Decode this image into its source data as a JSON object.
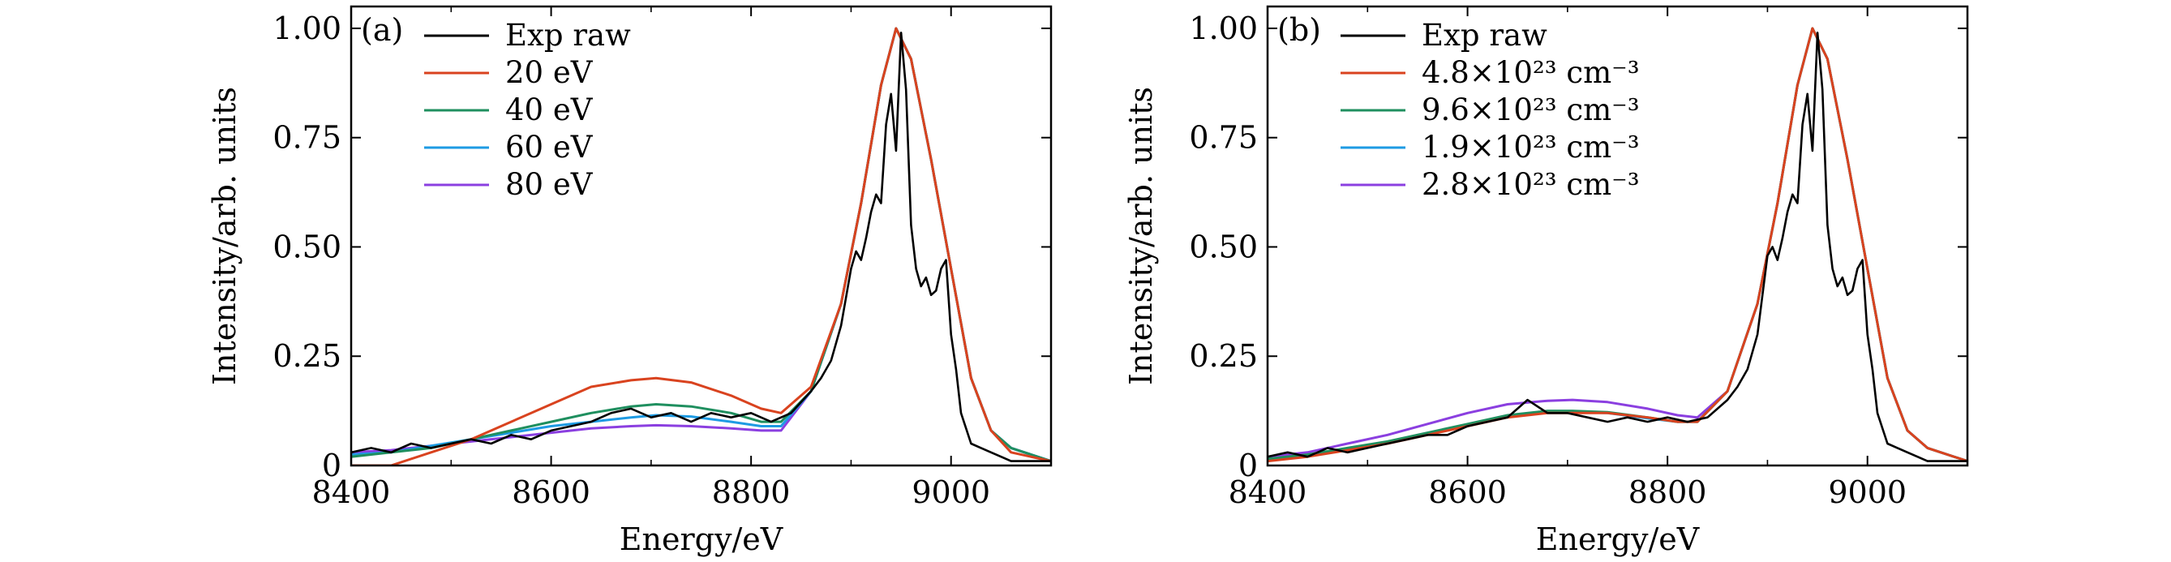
{
  "figure": {
    "title": ""
  },
  "chart_data": [
    {
      "panel": "(a)",
      "type": "line",
      "title": "",
      "xlabel": "Energy/eV",
      "ylabel": "Intensity/arb. units",
      "xlim": [
        8400,
        9100
      ],
      "ylim": [
        0,
        1.05
      ],
      "xticks": [
        8400,
        8600,
        8800,
        9000
      ],
      "xtick_labels": [
        "8400",
        "8600",
        "8800",
        "9000"
      ],
      "yticks": [
        0,
        0.25,
        0.5,
        0.75,
        1.0
      ],
      "ytick_labels": [
        "0",
        "0.25",
        "0.50",
        "0.75",
        "1.00"
      ],
      "grid": false,
      "legend": "top-left",
      "series": [
        {
          "name": "Exp raw",
          "color": "#000000",
          "x": [
            8400,
            8420,
            8440,
            8460,
            8480,
            8500,
            8520,
            8540,
            8560,
            8580,
            8600,
            8620,
            8640,
            8660,
            8680,
            8700,
            8720,
            8740,
            8760,
            8780,
            8800,
            8820,
            8840,
            8860,
            8870,
            8880,
            8890,
            8900,
            8905,
            8910,
            8915,
            8920,
            8925,
            8930,
            8935,
            8940,
            8945,
            8950,
            8955,
            8960,
            8965,
            8970,
            8975,
            8980,
            8985,
            8990,
            8995,
            9000,
            9005,
            9010,
            9020,
            9030,
            9040,
            9050,
            9060,
            9080,
            9100
          ],
          "y": [
            0.03,
            0.04,
            0.03,
            0.05,
            0.04,
            0.05,
            0.06,
            0.05,
            0.07,
            0.06,
            0.08,
            0.09,
            0.1,
            0.12,
            0.13,
            0.11,
            0.12,
            0.1,
            0.12,
            0.11,
            0.12,
            0.1,
            0.12,
            0.17,
            0.2,
            0.24,
            0.32,
            0.45,
            0.49,
            0.47,
            0.52,
            0.58,
            0.62,
            0.6,
            0.78,
            0.85,
            0.72,
            0.99,
            0.86,
            0.55,
            0.45,
            0.41,
            0.43,
            0.39,
            0.4,
            0.45,
            0.47,
            0.3,
            0.22,
            0.12,
            0.05,
            0.04,
            0.03,
            0.02,
            0.01,
            0.01,
            0.01
          ]
        },
        {
          "name": "20 eV",
          "color": "#d9431f",
          "x": [
            8400,
            8440,
            8480,
            8520,
            8560,
            8600,
            8640,
            8680,
            8705,
            8740,
            8780,
            8810,
            8830,
            8860,
            8890,
            8910,
            8930,
            8945,
            8960,
            8980,
            9000,
            9020,
            9040,
            9060,
            9100
          ],
          "y": [
            0.0,
            0.0,
            0.03,
            0.06,
            0.1,
            0.14,
            0.18,
            0.195,
            0.2,
            0.19,
            0.16,
            0.13,
            0.12,
            0.18,
            0.37,
            0.6,
            0.87,
            1.0,
            0.93,
            0.7,
            0.45,
            0.2,
            0.08,
            0.03,
            0.01
          ]
        },
        {
          "name": "40 eV",
          "color": "#1f8f5f",
          "x": [
            8400,
            8440,
            8480,
            8520,
            8560,
            8600,
            8640,
            8680,
            8705,
            8740,
            8780,
            8810,
            8830,
            8860,
            8890,
            8910,
            8930,
            8945,
            8960,
            8980,
            9000,
            9020,
            9040,
            9060,
            9100
          ],
          "y": [
            0.02,
            0.03,
            0.04,
            0.06,
            0.08,
            0.1,
            0.12,
            0.135,
            0.14,
            0.135,
            0.12,
            0.1,
            0.1,
            0.17,
            0.37,
            0.6,
            0.87,
            1.0,
            0.93,
            0.7,
            0.45,
            0.2,
            0.08,
            0.04,
            0.01
          ]
        },
        {
          "name": "60 eV",
          "color": "#1e9be3",
          "x": [
            8400,
            8440,
            8480,
            8520,
            8560,
            8600,
            8640,
            8680,
            8705,
            8740,
            8780,
            8810,
            8830,
            8860,
            8890,
            8910,
            8930,
            8945,
            8960,
            8980,
            9000,
            9020,
            9040,
            9060,
            9100
          ],
          "y": [
            0.025,
            0.03,
            0.045,
            0.06,
            0.075,
            0.09,
            0.1,
            0.11,
            0.115,
            0.112,
            0.1,
            0.09,
            0.09,
            0.17,
            0.37,
            0.6,
            0.87,
            1.0,
            0.93,
            0.7,
            0.45,
            0.2,
            0.08,
            0.04,
            0.01
          ]
        },
        {
          "name": "80 eV",
          "color": "#8b3fe0",
          "x": [
            8400,
            8440,
            8480,
            8520,
            8560,
            8600,
            8640,
            8680,
            8705,
            8740,
            8780,
            8810,
            8830,
            8860,
            8890,
            8910,
            8930,
            8945,
            8960,
            8980,
            9000,
            9020,
            9040,
            9060,
            9100
          ],
          "y": [
            0.03,
            0.035,
            0.045,
            0.055,
            0.065,
            0.075,
            0.085,
            0.09,
            0.092,
            0.09,
            0.085,
            0.08,
            0.08,
            0.17,
            0.37,
            0.6,
            0.87,
            1.0,
            0.93,
            0.7,
            0.45,
            0.2,
            0.08,
            0.04,
            0.01
          ]
        }
      ]
    },
    {
      "panel": "(b)",
      "type": "line",
      "title": "",
      "xlabel": "Energy/eV",
      "ylabel": "Intensity/arb. units",
      "xlim": [
        8400,
        9100
      ],
      "ylim": [
        0,
        1.05
      ],
      "xticks": [
        8400,
        8600,
        8800,
        9000
      ],
      "xtick_labels": [
        "8400",
        "8600",
        "8800",
        "9000"
      ],
      "yticks": [
        0,
        0.25,
        0.5,
        0.75,
        1.0
      ],
      "ytick_labels": [
        "0",
        "0.25",
        "0.50",
        "0.75",
        "1.00"
      ],
      "grid": false,
      "legend": "top-left",
      "series": [
        {
          "name": "Exp raw",
          "color": "#000000",
          "x": [
            8400,
            8420,
            8440,
            8460,
            8480,
            8500,
            8520,
            8540,
            8560,
            8580,
            8600,
            8620,
            8640,
            8660,
            8680,
            8700,
            8720,
            8740,
            8760,
            8780,
            8800,
            8820,
            8840,
            8860,
            8870,
            8880,
            8890,
            8900,
            8905,
            8910,
            8915,
            8920,
            8925,
            8930,
            8935,
            8940,
            8945,
            8950,
            8955,
            8960,
            8965,
            8970,
            8975,
            8980,
            8985,
            8990,
            8995,
            9000,
            9005,
            9010,
            9020,
            9030,
            9040,
            9050,
            9060,
            9080,
            9100
          ],
          "y": [
            0.02,
            0.03,
            0.02,
            0.04,
            0.03,
            0.04,
            0.05,
            0.06,
            0.07,
            0.07,
            0.09,
            0.1,
            0.11,
            0.15,
            0.12,
            0.12,
            0.11,
            0.1,
            0.11,
            0.1,
            0.11,
            0.1,
            0.11,
            0.15,
            0.18,
            0.22,
            0.3,
            0.48,
            0.5,
            0.47,
            0.52,
            0.58,
            0.62,
            0.6,
            0.78,
            0.85,
            0.72,
            0.99,
            0.86,
            0.55,
            0.45,
            0.41,
            0.43,
            0.39,
            0.4,
            0.45,
            0.47,
            0.3,
            0.22,
            0.12,
            0.05,
            0.04,
            0.03,
            0.02,
            0.01,
            0.01,
            0.01
          ]
        },
        {
          "name": "4.8×10²³ cm⁻³",
          "color": "#d9431f",
          "x": [
            8400,
            8440,
            8480,
            8520,
            8560,
            8600,
            8640,
            8680,
            8705,
            8740,
            8780,
            8810,
            8830,
            8860,
            8890,
            8910,
            8930,
            8945,
            8960,
            8980,
            9000,
            9020,
            9040,
            9060,
            9100
          ],
          "y": [
            0.01,
            0.02,
            0.035,
            0.05,
            0.07,
            0.09,
            0.11,
            0.12,
            0.12,
            0.12,
            0.11,
            0.1,
            0.1,
            0.17,
            0.37,
            0.6,
            0.87,
            1.0,
            0.93,
            0.7,
            0.45,
            0.2,
            0.08,
            0.04,
            0.01
          ]
        },
        {
          "name": "9.6×10²³ cm⁻³",
          "color": "#1f8f5f",
          "x": [
            8400,
            8440,
            8480,
            8520,
            8560,
            8600,
            8640,
            8680,
            8705,
            8740,
            8780,
            8810,
            8830,
            8860,
            8890,
            8910,
            8930,
            8945,
            8960,
            8980,
            9000,
            9020,
            9040,
            9060,
            9100
          ],
          "y": [
            0.015,
            0.025,
            0.04,
            0.055,
            0.075,
            0.095,
            0.115,
            0.125,
            0.125,
            0.122,
            0.11,
            0.1,
            0.1,
            0.17,
            0.37,
            0.6,
            0.87,
            1.0,
            0.93,
            0.7,
            0.45,
            0.2,
            0.08,
            0.04,
            0.01
          ]
        },
        {
          "name": "1.9×10²³ cm⁻³",
          "color": "#1e9be3",
          "x": [
            8400,
            8440,
            8480,
            8520,
            8560,
            8600,
            8640,
            8680,
            8705,
            8740,
            8780,
            8810,
            8830,
            8860,
            8890,
            8910,
            8930,
            8945,
            8960,
            8980,
            9000,
            9020,
            9040,
            9060,
            9100
          ],
          "y": [
            0.012,
            0.022,
            0.037,
            0.052,
            0.072,
            0.092,
            0.112,
            0.122,
            0.122,
            0.12,
            0.108,
            0.1,
            0.1,
            0.17,
            0.37,
            0.6,
            0.87,
            1.0,
            0.93,
            0.7,
            0.45,
            0.2,
            0.08,
            0.04,
            0.01
          ]
        },
        {
          "name": "2.8×10²³ cm⁻³",
          "color": "#8b3fe0",
          "x": [
            8400,
            8440,
            8480,
            8520,
            8560,
            8600,
            8640,
            8680,
            8705,
            8740,
            8780,
            8810,
            8830,
            8860,
            8890,
            8910,
            8930,
            8945,
            8960,
            8980,
            9000,
            9020,
            9040,
            9060,
            9100
          ],
          "y": [
            0.02,
            0.03,
            0.05,
            0.07,
            0.095,
            0.12,
            0.14,
            0.148,
            0.15,
            0.145,
            0.13,
            0.115,
            0.11,
            0.17,
            0.37,
            0.6,
            0.87,
            1.0,
            0.93,
            0.7,
            0.45,
            0.2,
            0.08,
            0.04,
            0.01
          ]
        }
      ]
    }
  ]
}
